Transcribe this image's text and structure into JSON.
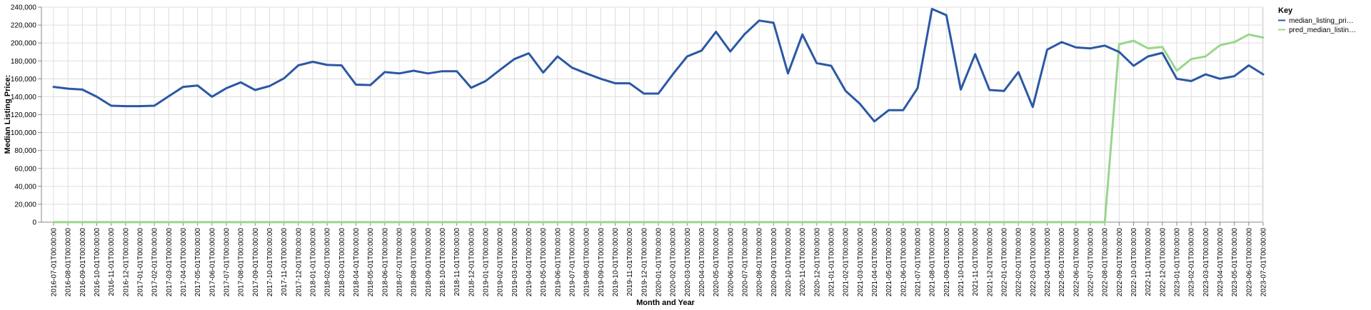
{
  "chart_data": {
    "type": "line",
    "xlabel": "Month and Year",
    "ylabel": "Median Listing Price:",
    "ylim": [
      0,
      240000
    ],
    "y_ticks": [
      "0",
      "20,000",
      "40,000",
      "60,000",
      "80,000",
      "100,000",
      "120,000",
      "140,000",
      "160,000",
      "180,000",
      "200,000",
      "220,000",
      "240,000"
    ],
    "grid": true,
    "legend": {
      "title": "Key",
      "placement": "top-right"
    },
    "x": [
      "2016-07-01T00:00:00",
      "2016-08-01T00:00:00",
      "2016-09-01T00:00:00",
      "2016-10-01T00:00:00",
      "2016-11-01T00:00:00",
      "2016-12-01T00:00:00",
      "2017-01-01T00:00:00",
      "2017-02-01T00:00:00",
      "2017-03-01T00:00:00",
      "2017-04-01T00:00:00",
      "2017-05-01T00:00:00",
      "2017-06-01T00:00:00",
      "2017-07-01T00:00:00",
      "2017-08-01T00:00:00",
      "2017-09-01T00:00:00",
      "2017-10-01T00:00:00",
      "2017-11-01T00:00:00",
      "2017-12-01T00:00:00",
      "2018-01-01T00:00:00",
      "2018-02-01T00:00:00",
      "2018-03-01T00:00:00",
      "2018-04-01T00:00:00",
      "2018-05-01T00:00:00",
      "2018-06-01T00:00:00",
      "2018-07-01T00:00:00",
      "2018-08-01T00:00:00",
      "2018-09-01T00:00:00",
      "2018-10-01T00:00:00",
      "2018-11-01T00:00:00",
      "2018-12-01T00:00:00",
      "2019-01-01T00:00:00",
      "2019-02-01T00:00:00",
      "2019-03-01T00:00:00",
      "2019-04-01T00:00:00",
      "2019-05-01T00:00:00",
      "2019-06-01T00:00:00",
      "2019-07-01T00:00:00",
      "2019-08-01T00:00:00",
      "2019-09-01T00:00:00",
      "2019-10-01T00:00:00",
      "2019-11-01T00:00:00",
      "2019-12-01T00:00:00",
      "2020-01-01T00:00:00",
      "2020-02-01T00:00:00",
      "2020-03-01T00:00:00",
      "2020-04-01T00:00:00",
      "2020-05-01T00:00:00",
      "2020-06-01T00:00:00",
      "2020-07-01T00:00:00",
      "2020-08-01T00:00:00",
      "2020-09-01T00:00:00",
      "2020-10-01T00:00:00",
      "2020-11-01T00:00:00",
      "2020-12-01T00:00:00",
      "2021-01-01T00:00:00",
      "2021-02-01T00:00:00",
      "2021-03-01T00:00:00",
      "2021-04-01T00:00:00",
      "2021-05-01T00:00:00",
      "2021-06-01T00:00:00",
      "2021-07-01T00:00:00",
      "2021-08-01T00:00:00",
      "2021-09-01T00:00:00",
      "2021-10-01T00:00:00",
      "2021-11-01T00:00:00",
      "2021-12-01T00:00:00",
      "2022-01-01T00:00:00",
      "2022-02-01T00:00:00",
      "2022-03-01T00:00:00",
      "2022-04-01T00:00:00",
      "2022-05-01T00:00:00",
      "2022-06-01T00:00:00",
      "2022-07-01T00:00:00",
      "2022-08-01T00:00:00",
      "2022-09-01T00:00:00",
      "2022-10-01T00:00:00",
      "2022-11-01T00:00:00",
      "2022-12-01T00:00:00",
      "2023-01-01T00:00:00",
      "2023-02-01T00:00:00",
      "2023-03-01T00:00:00",
      "2023-04-01T00:00:00",
      "2023-05-01T00:00:00",
      "2023-06-01T00:00:00",
      "2023-07-01T00:00:00"
    ],
    "series": [
      {
        "name": "median_listing_pri…",
        "color": "#2b58a4",
        "values": [
          151000,
          149000,
          148000,
          140000,
          130000,
          129500,
          129500,
          130000,
          140500,
          151000,
          152500,
          140000,
          149500,
          156000,
          147500,
          152000,
          160500,
          175000,
          179000,
          175500,
          175000,
          153500,
          153000,
          167500,
          166000,
          169000,
          166000,
          168500,
          168500,
          150000,
          157500,
          170000,
          182000,
          188500,
          167000,
          185000,
          172500,
          166000,
          160000,
          155000,
          155000,
          143500,
          143500,
          165000,
          185000,
          191500,
          212500,
          190500,
          210000,
          225000,
          222500,
          166000,
          209500,
          177500,
          174500,
          146500,
          132000,
          112500,
          125000,
          125000,
          149500,
          238000,
          231000,
          148000,
          187500,
          147500,
          146500,
          167500,
          128500,
          192500,
          201000,
          195000,
          194000,
          197000,
          190000,
          174500,
          185000,
          189000,
          160000,
          157500,
          165000,
          160000,
          163000,
          175000,
          165000
        ]
      },
      {
        "name": "pred_median_listin…",
        "color": "#99d68d",
        "values": [
          0,
          0,
          0,
          0,
          0,
          0,
          0,
          0,
          0,
          0,
          0,
          0,
          0,
          0,
          0,
          0,
          0,
          0,
          0,
          0,
          0,
          0,
          0,
          0,
          0,
          0,
          0,
          0,
          0,
          0,
          0,
          0,
          0,
          0,
          0,
          0,
          0,
          0,
          0,
          0,
          0,
          0,
          0,
          0,
          0,
          0,
          0,
          0,
          0,
          0,
          0,
          0,
          0,
          0,
          0,
          0,
          0,
          0,
          0,
          0,
          0,
          0,
          0,
          0,
          0,
          0,
          0,
          0,
          0,
          0,
          0,
          0,
          0,
          0,
          198500,
          202500,
          194000,
          195500,
          169000,
          182000,
          185000,
          197500,
          201000,
          209500,
          206000
        ]
      }
    ]
  }
}
